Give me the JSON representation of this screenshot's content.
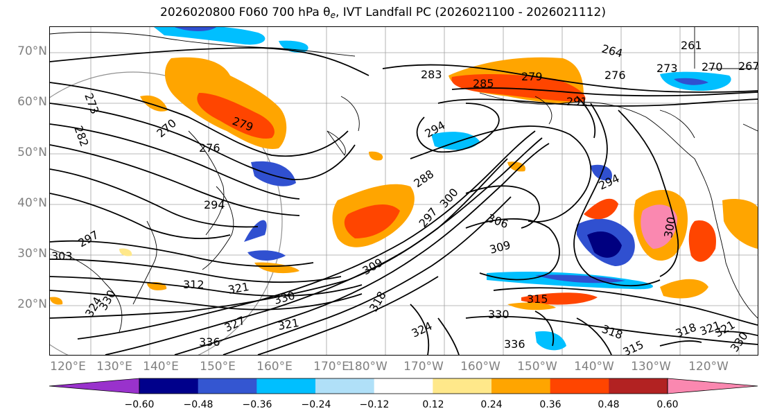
{
  "title": {
    "prefix": "2026020800 F060 700 hPa θ",
    "subscript": "e",
    "suffix": ", IVT Landfall PC (2026021100 - 2026021112)"
  },
  "map": {
    "projection": "plate-carree-pacific",
    "lat_labels": [
      "70°N",
      "60°N",
      "50°N",
      "40°N",
      "30°N",
      "20°N"
    ],
    "lon_labels": [
      "120°E",
      "130°E",
      "140°E",
      "150°E",
      "160°E",
      "170°E",
      "180°W",
      "170°W",
      "160°W",
      "150°W",
      "140°W",
      "130°W",
      "120°W"
    ],
    "contour_color": "#000000",
    "contour_labels": [
      "264",
      "261",
      "273",
      "270",
      "267",
      "276",
      "279",
      "283",
      "285",
      "291",
      "294",
      "273",
      "282",
      "279",
      "270",
      "276",
      "294",
      "288",
      "297",
      "300",
      "306",
      "309",
      "303",
      "297",
      "312",
      "321",
      "330",
      "318",
      "321",
      "324",
      "327",
      "330",
      "336",
      "315",
      "309",
      "294",
      "300",
      "318",
      "315",
      "318",
      "321",
      "330",
      "336",
      "324",
      "330",
      "321"
    ],
    "shading_colors": {
      "very_neg": "#000080",
      "neg_strong": "#3050d0",
      "neg_mid": "#00bfff",
      "neg_light": "#b0e0f8",
      "pos_light": "#ffe88a",
      "pos_mid": "#ffa500",
      "pos_strong": "#ff4500",
      "pos_dark": "#b22222",
      "pos_pink": "#fa88b0"
    }
  },
  "colorbar": {
    "colors": [
      "#9932cc",
      "#00008b",
      "#3456d1",
      "#00bfff",
      "#b0e0f8",
      "#ffffff",
      "#ffe88a",
      "#ffa500",
      "#ff4500",
      "#b22222",
      "#fa88b0"
    ],
    "tick_labels": [
      "−0.60",
      "−0.48",
      "−0.36",
      "−0.24",
      "−0.12",
      "0.12",
      "0.24",
      "0.36",
      "0.48",
      "0.60"
    ],
    "extend": "both"
  }
}
